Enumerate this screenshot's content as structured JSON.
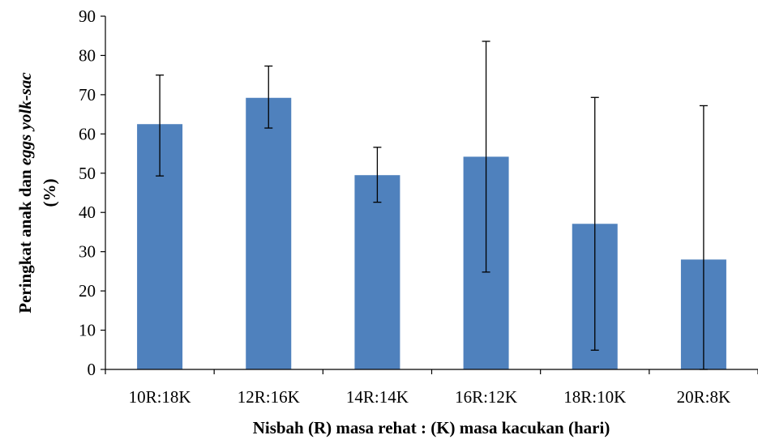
{
  "chart_data": {
    "type": "bar",
    "categories": [
      "10R:18K",
      "12R:16K",
      "14R:14K",
      "16R:12K",
      "18R:10K",
      "20R:8K"
    ],
    "series": [
      {
        "values": [
          62.5,
          69.2,
          49.5,
          54.2,
          37.1,
          28.0
        ],
        "error_upper": [
          75.0,
          77.3,
          56.6,
          83.6,
          69.3,
          67.2
        ],
        "error_lower": [
          49.3,
          61.5,
          42.6,
          24.8,
          4.9,
          0.0
        ]
      }
    ],
    "xlabel": "Nisbah (R) masa rehat : (K) masa kacukan (hari)",
    "ylabel": {
      "line1_prefix": "Peringkat anak dan ",
      "line1_italic": "eggs yolk-sac",
      "line2": "(%)"
    },
    "ylim": [
      0,
      90
    ],
    "yticks": [
      0,
      10,
      20,
      30,
      40,
      50,
      60,
      70,
      80,
      90
    ],
    "grid": false,
    "legend": "none",
    "bar_color": "#4f81bd"
  }
}
